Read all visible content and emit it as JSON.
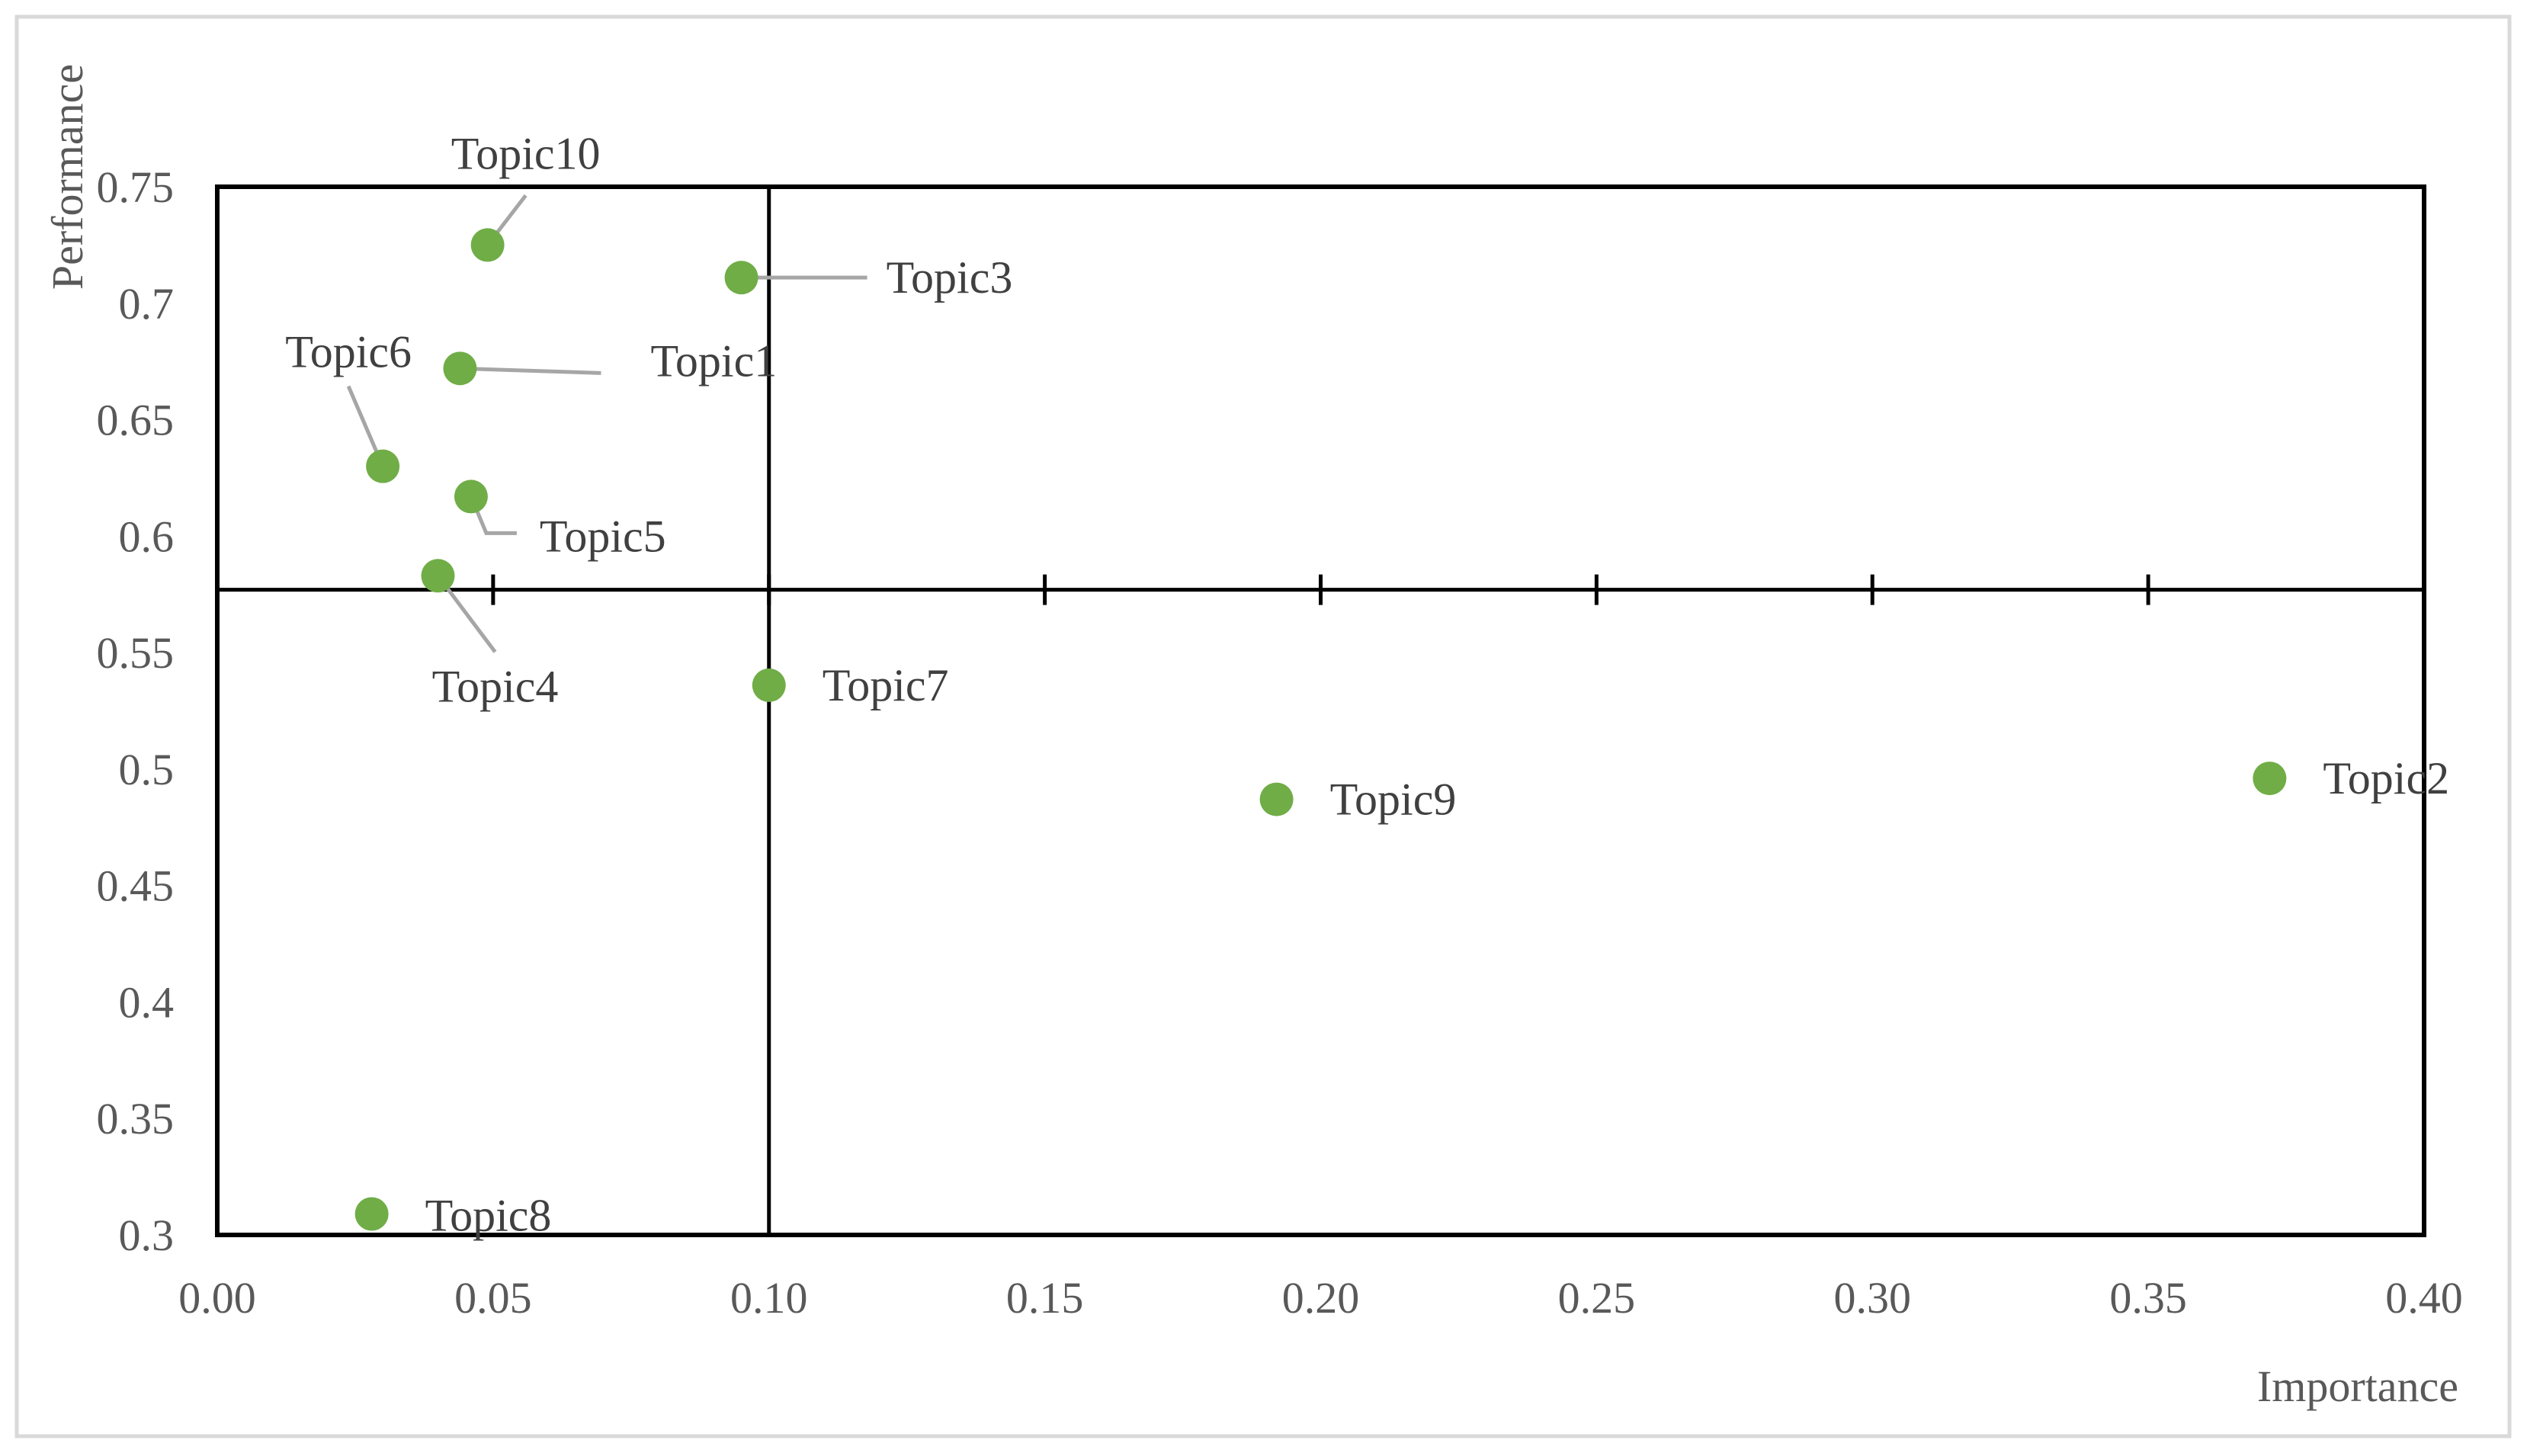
{
  "chart_data": {
    "type": "scatter",
    "xlabel": "Importance",
    "ylabel": "Performance",
    "xlim": [
      0,
      0.4
    ],
    "ylim": [
      0.3,
      0.75
    ],
    "x_ticks": [
      "0.00",
      "0.05",
      "0.10",
      "0.15",
      "0.20",
      "0.25",
      "0.30",
      "0.35",
      "0.40"
    ],
    "y_ticks": [
      "0.3",
      "0.35",
      "0.4",
      "0.45",
      "0.5",
      "0.55",
      "0.6",
      "0.65",
      "0.7",
      "0.75"
    ],
    "crosshair": {
      "x": 0.1,
      "y": 0.577
    },
    "grid": false,
    "legend": "none",
    "point_color": "#70AD47",
    "leader_color": "#A6A6A6",
    "points": [
      {
        "label": "Topic1",
        "x": 0.044,
        "y": 0.672
      },
      {
        "label": "Topic2",
        "x": 0.372,
        "y": 0.496
      },
      {
        "label": "Topic3",
        "x": 0.095,
        "y": 0.711
      },
      {
        "label": "Topic4",
        "x": 0.04,
        "y": 0.583
      },
      {
        "label": "Topic5",
        "x": 0.046,
        "y": 0.617
      },
      {
        "label": "Topic6",
        "x": 0.03,
        "y": 0.63
      },
      {
        "label": "Topic7",
        "x": 0.1,
        "y": 0.536
      },
      {
        "label": "Topic8",
        "x": 0.028,
        "y": 0.309
      },
      {
        "label": "Topic9",
        "x": 0.192,
        "y": 0.487
      },
      {
        "label": "Topic10",
        "x": 0.049,
        "y": 0.725
      }
    ]
  }
}
